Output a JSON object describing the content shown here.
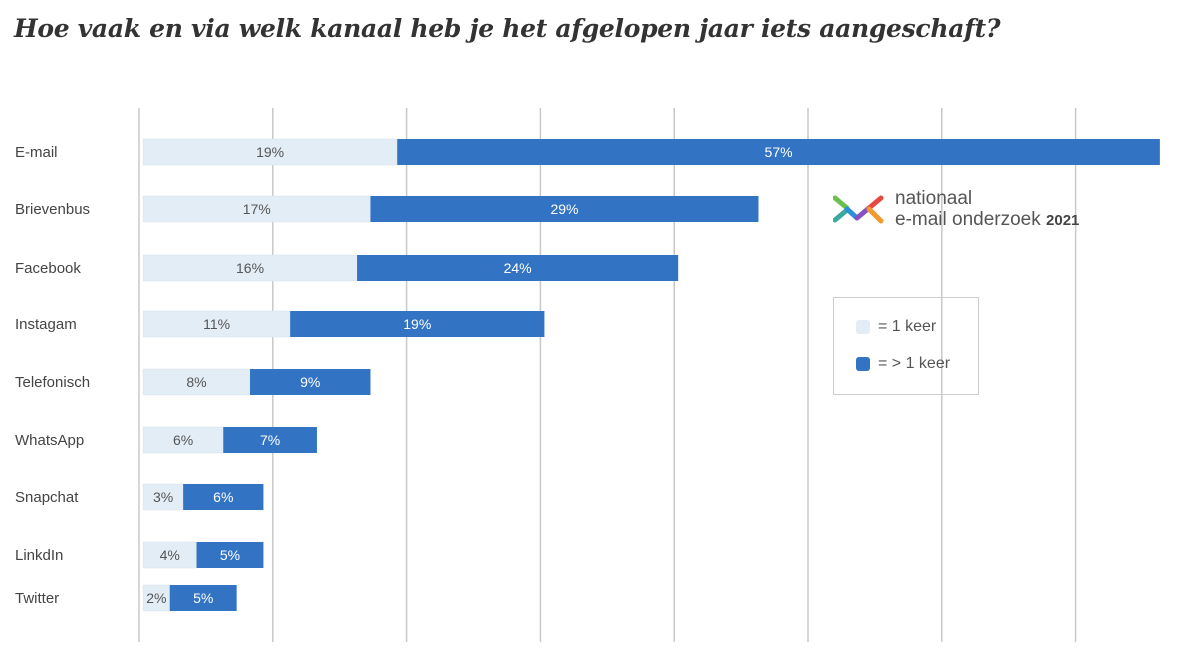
{
  "chart_data": {
    "type": "bar",
    "stacked": true,
    "orientation": "horizontal",
    "title": "Hoe vaak en via welk kanaal heb je het afgelopen jaar iets aangeschaft?",
    "categories": [
      "E-mail",
      "Brievenbus",
      "Facebook",
      "Instagam",
      "Telefonisch",
      "WhatsApp",
      "Snapchat",
      "LinkdIn",
      "Twitter"
    ],
    "series": [
      {
        "name": "= 1 keer",
        "color": "#e3edf6",
        "values": [
          19,
          17,
          16,
          11,
          8,
          6,
          3,
          4,
          2
        ]
      },
      {
        "name": "= > 1 keer",
        "color": "#3373c4",
        "values": [
          57,
          29,
          24,
          19,
          9,
          7,
          6,
          5,
          5
        ]
      }
    ],
    "xlim": [
      0,
      80
    ],
    "grid": true,
    "gridlines_every": 10,
    "value_suffix": "%",
    "legend_placement": "right"
  },
  "logo": {
    "line1": "nationaal",
    "line2": "e-mail onderzoek",
    "year": "2021"
  }
}
